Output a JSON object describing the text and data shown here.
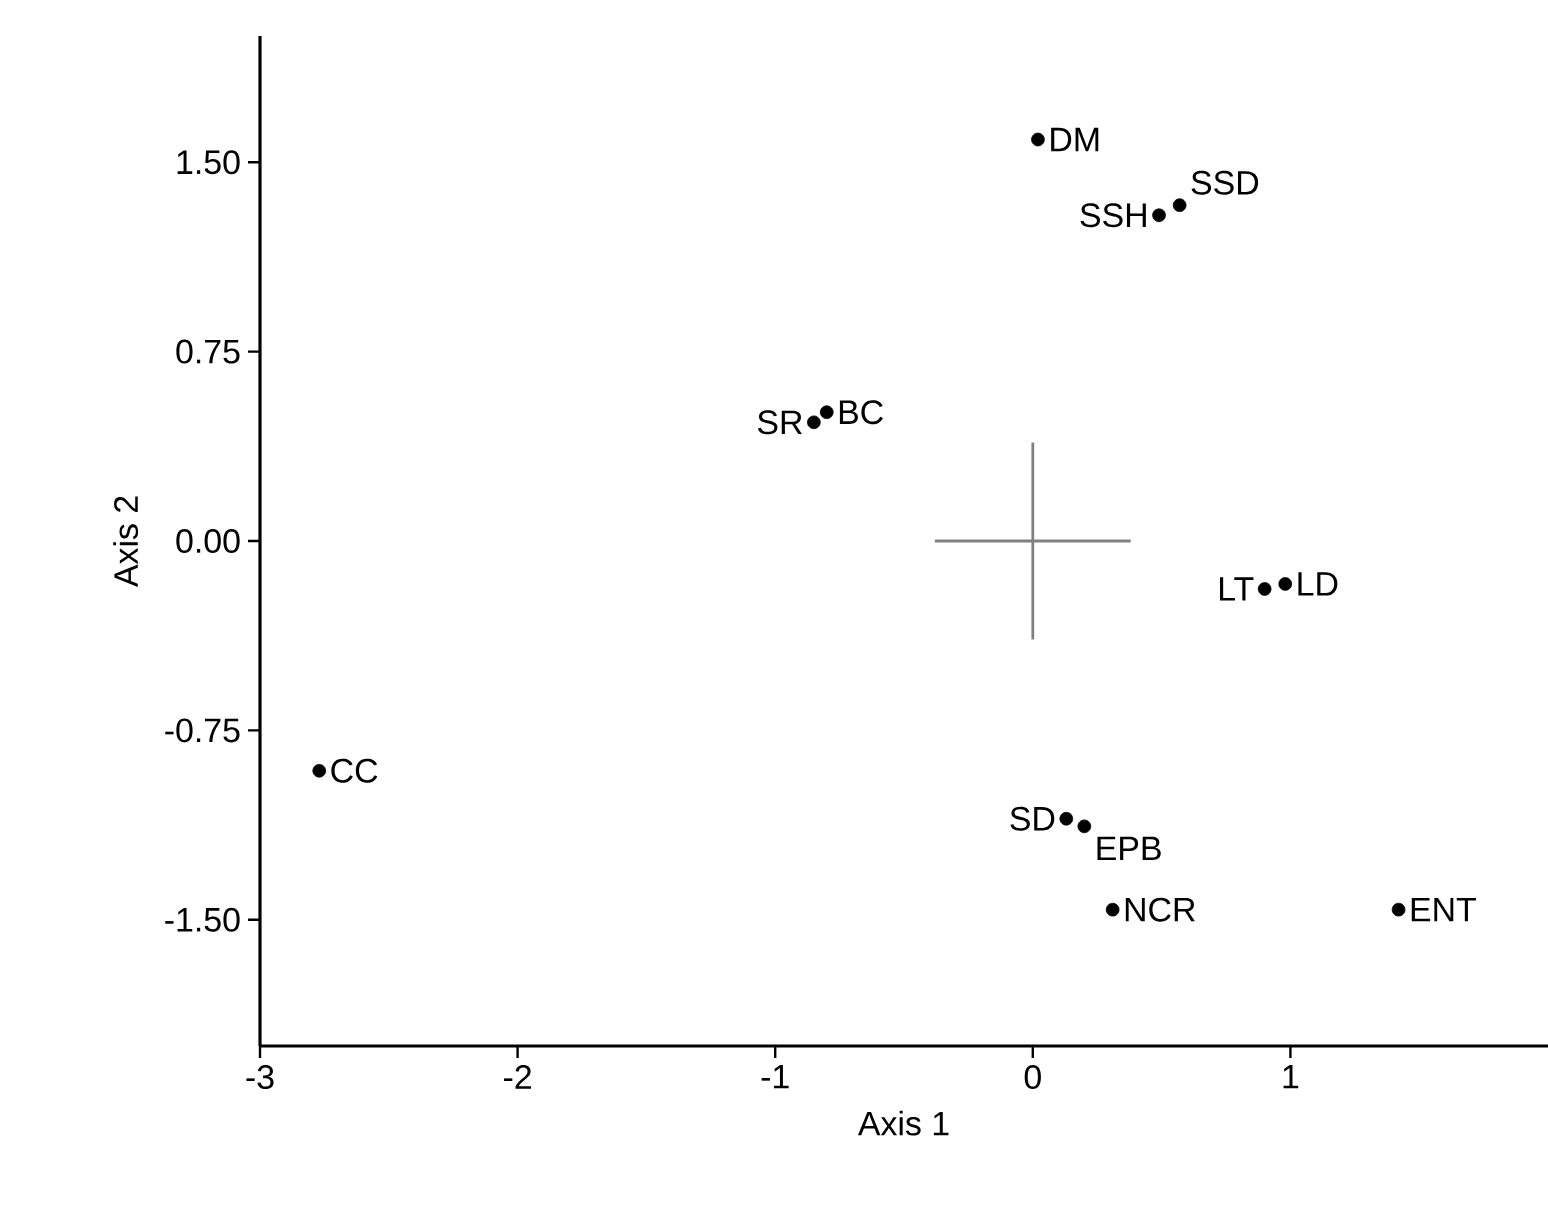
{
  "chart_data": {
    "type": "scatter",
    "xlabel": "Axis 1",
    "ylabel": "Axis 2",
    "xlim": [
      -3,
      2
    ],
    "ylim": [
      -2,
      2
    ],
    "xticks": [
      -3,
      -2,
      -1,
      0,
      1
    ],
    "yticks": [
      {
        "value": -1.5,
        "label": "-1.50"
      },
      {
        "value": -0.75,
        "label": "-0.75"
      },
      {
        "value": 0,
        "label": "0.00"
      },
      0.75,
      {
        "value": 1.5,
        "label": "1.50"
      }
    ],
    "grid": false,
    "series": [
      {
        "color": "#000000",
        "marker": "circle",
        "x": [
          0.02,
          0.57,
          0.49,
          -0.85,
          -0.8,
          0.9,
          0.98,
          -2.77,
          0.13,
          0.2,
          0.31,
          1.42
        ],
        "values": [
          1.59,
          1.33,
          1.29,
          0.47,
          0.51,
          -0.19,
          -0.17,
          -0.91,
          -1.1,
          -1.13,
          -1.46,
          -1.46
        ]
      },
      {
        "type": "line",
        "color": "#808080",
        "marker": "none",
        "x": [
          -0.38,
          0.38
        ],
        "values": [
          0,
          0
        ]
      },
      {
        "type": "line",
        "color": "#808080",
        "marker": "none",
        "x": [
          0,
          0
        ],
        "values": [
          0.39,
          -0.39
        ]
      }
    ],
    "annotations": [
      {
        "text": "DM",
        "x": 0.02,
        "y": 1.59
      },
      {
        "text": "SSD",
        "x": 0.57,
        "y": 1.33
      },
      {
        "text": "SSH",
        "x": 0.49,
        "y": 1.29
      },
      {
        "text": "SR",
        "x": -0.85,
        "y": 0.47
      },
      {
        "text": "BC",
        "x": -0.8,
        "y": 0.51
      },
      {
        "text": "LT",
        "x": 0.9,
        "y": -0.19
      },
      {
        "text": "LD",
        "x": 0.98,
        "y": -0.17
      },
      {
        "text": "CC",
        "x": -2.77,
        "y": -0.91
      },
      {
        "text": "SD",
        "x": 0.13,
        "y": -1.1
      },
      {
        "text": "EPB",
        "x": 0.2,
        "y": -1.13
      },
      {
        "text": "NCR",
        "x": 0.31,
        "y": -1.46
      },
      {
        "text": "ENT",
        "x": 1.42,
        "y": -1.46
      }
    ]
  }
}
